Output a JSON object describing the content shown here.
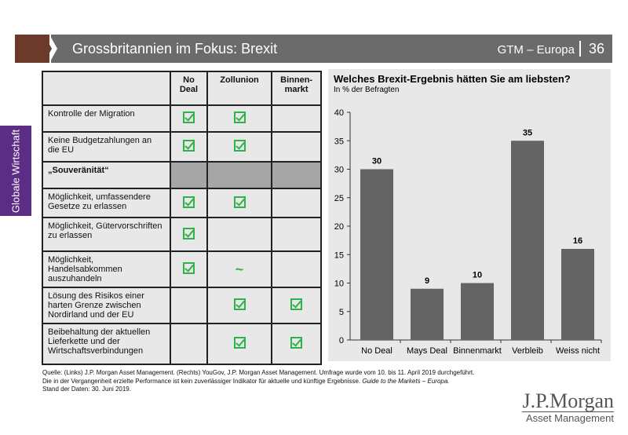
{
  "header": {
    "title": "Grossbritannien im Fokus: Brexit",
    "section": "GTM – Europa",
    "page": "36"
  },
  "sidebar": {
    "label": "Globale Wirtschaft"
  },
  "table": {
    "columns": [
      "",
      "No Deal",
      "Zollunion",
      "Binnen-markt"
    ],
    "rows": [
      {
        "label": "Kontrolle der Migration",
        "cells": [
          "check",
          "check",
          ""
        ]
      },
      {
        "label": "Keine Budgetzahlungen an die EU",
        "cells": [
          "check",
          "check",
          ""
        ]
      },
      {
        "label": "„Souveränität“",
        "cells": [
          "",
          "",
          ""
        ],
        "section": true
      },
      {
        "label": "Möglichkeit, umfassendere Gesetze zu erlassen",
        "cells": [
          "check",
          "check",
          ""
        ]
      },
      {
        "label": "Möglichkeit, Gütervorschriften zu erlassen",
        "cells": [
          "check",
          "",
          ""
        ]
      },
      {
        "label": "Möglichkeit, Handelsabkommen auszuhandeln",
        "cells": [
          "check",
          "~",
          ""
        ]
      },
      {
        "label": "Lösung des Risikos einer harten Grenze zwischen Nordirland und der EU",
        "cells": [
          "",
          "check",
          "check"
        ]
      },
      {
        "label": "Beibehaltung der aktuellen Lieferkette und der Wirtschaftsverbindungen",
        "cells": [
          "",
          "check",
          "check"
        ]
      }
    ]
  },
  "chart_data": {
    "type": "bar",
    "title": "Welches Brexit-Ergebnis hätten Sie am liebsten?",
    "subtitle": "In % der Befragten",
    "categories": [
      "No Deal",
      "Mays Deal",
      "Binnenmarkt",
      "Verbleib",
      "Weiss nicht"
    ],
    "values": [
      30,
      9,
      10,
      35,
      16
    ],
    "ylim": [
      0,
      40
    ],
    "yticks": [
      0,
      5,
      10,
      15,
      20,
      25,
      30,
      35,
      40
    ],
    "bar_color": "#646464"
  },
  "footer": {
    "line1": "Quelle: (Links) J.P. Morgan Asset Management. (Rechts) YouGov, J.P. Morgan Asset Management. Umfrage wurde vom 10. bis 11. April 2019 durchgeführt.",
    "line2": "Die in der Vergangenheit erzielte Performance ist kein zuverlässiger Indikator für aktuelle und künftige Ergebnisse.",
    "line2_italic": "Guide to the Markets – Europa.",
    "line3": "Stand der Daten: 30. Juni 2019."
  },
  "logo": {
    "name": "J.P.Morgan",
    "sub": "Asset Management"
  }
}
